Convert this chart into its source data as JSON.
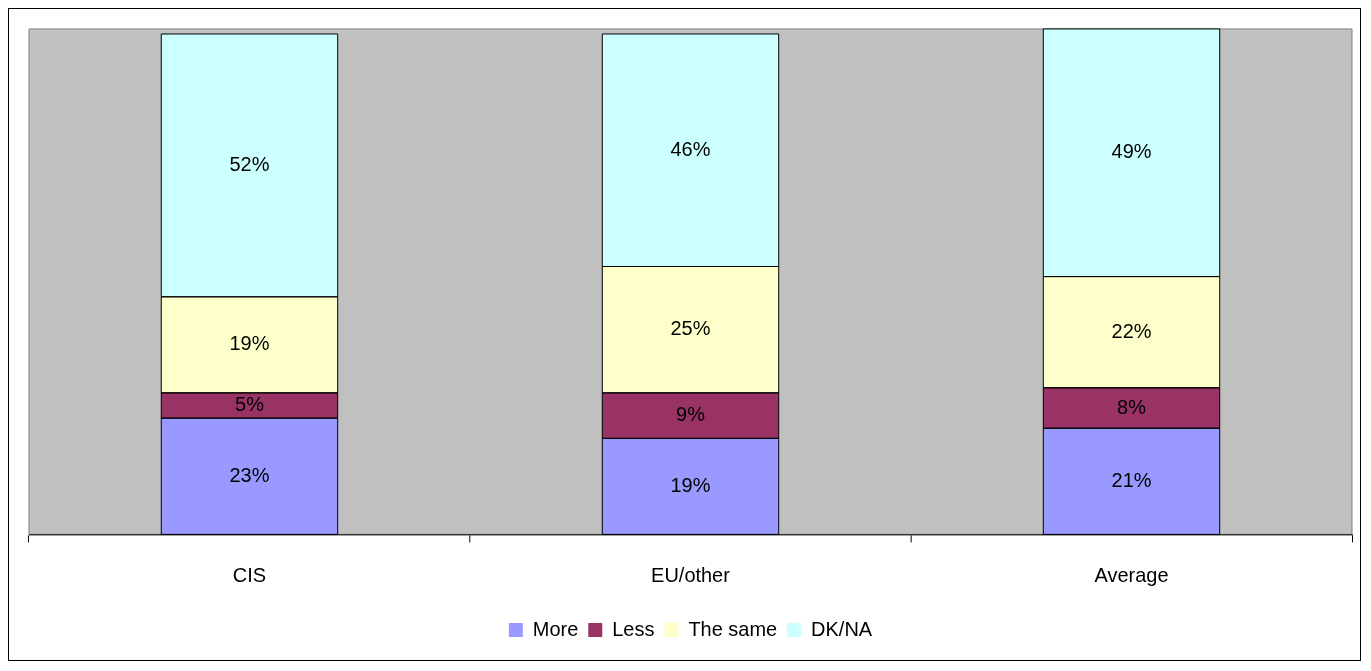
{
  "chart_data": {
    "type": "bar",
    "stacked": true,
    "legend": "bottom",
    "grid": false,
    "categories": [
      "CIS",
      "EU/other",
      "Average"
    ],
    "series": [
      {
        "name": "More",
        "color": "#9999ff",
        "values": [
          23,
          19,
          21
        ],
        "value_labels": [
          "23%",
          "19%",
          "21%"
        ]
      },
      {
        "name": "Less",
        "color": "#993366",
        "values": [
          5,
          9,
          8
        ],
        "value_labels": [
          "5%",
          "9%",
          "8%"
        ]
      },
      {
        "name": "The same",
        "color": "#ffffcc",
        "values": [
          19,
          25,
          22
        ],
        "value_labels": [
          "19%",
          "25%",
          "22%"
        ]
      },
      {
        "name": "DK/NA",
        "color": "#ccffff",
        "values": [
          52,
          46,
          49
        ],
        "value_labels": [
          "52%",
          "46%",
          "49%"
        ]
      }
    ]
  }
}
